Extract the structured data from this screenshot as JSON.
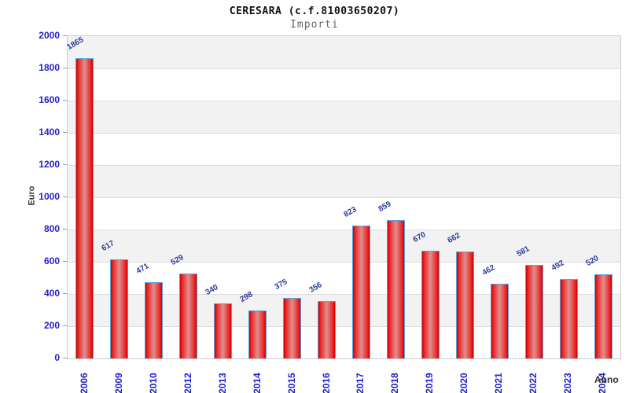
{
  "header": {
    "title": "CERESARA (c.f.81003650207)",
    "subtitle": "Importi"
  },
  "chart_data": {
    "type": "bar",
    "title": "CERESARA (c.f.81003650207)",
    "subtitle": "Importi",
    "xlabel": "Anno",
    "ylabel": "Euro",
    "categories": [
      "2006",
      "2009",
      "2010",
      "2012",
      "2013",
      "2014",
      "2015",
      "2016",
      "2017",
      "2018",
      "2019",
      "2020",
      "2021",
      "2022",
      "2023",
      "2024"
    ],
    "values": [
      1865,
      617,
      471,
      529,
      340,
      298,
      375,
      356,
      823,
      859,
      670,
      662,
      462,
      581,
      492,
      520
    ],
    "ylim": [
      0,
      2000
    ],
    "y_ticks": [
      0,
      200,
      400,
      600,
      800,
      1000,
      1200,
      1400,
      1600,
      1800,
      2000
    ],
    "grid": "horizontal alternating bands every 200",
    "legend_position": "none",
    "colors": {
      "bar_edge": "#cc0000",
      "bar_center": "#dd9090",
      "bar_border": "#5ba3d9",
      "tick_label": "#2222cc",
      "value_label": "#2e3a9a",
      "band_gray": "#f2f2f2",
      "gridline": "#dddddd",
      "plot_border": "#cccccc",
      "axis_title": "#333333"
    }
  }
}
